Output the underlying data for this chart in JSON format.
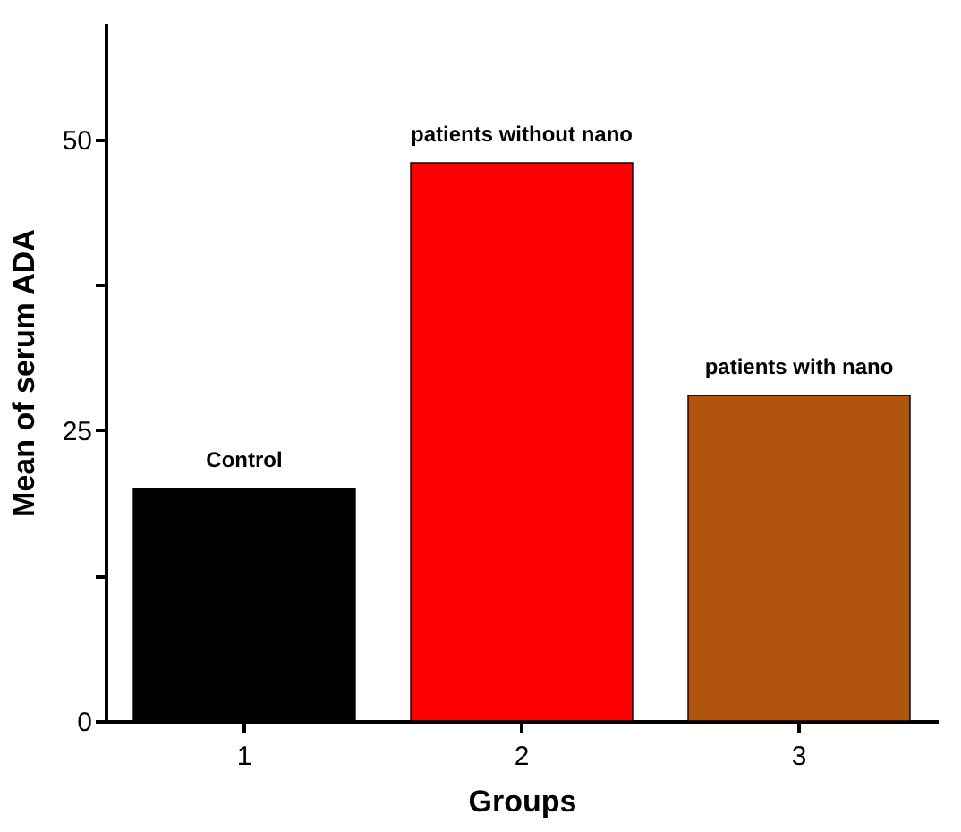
{
  "chart_data": {
    "type": "bar",
    "xlabel": "Groups",
    "ylabel": "Mean of serum ADA",
    "categories": [
      "1",
      "2",
      "3"
    ],
    "values": [
      20,
      48,
      28
    ],
    "colors": [
      "#000000",
      "#ff0000",
      "#b0540e"
    ],
    "ylim": [
      0,
      60
    ],
    "yticks": [
      0,
      {
        "value": 12.5,
        "label": null
      },
      25,
      {
        "value": 37.5,
        "label": null
      },
      50
    ],
    "annotations": [
      "Control",
      "patients without nano",
      "patients with nano"
    ]
  }
}
